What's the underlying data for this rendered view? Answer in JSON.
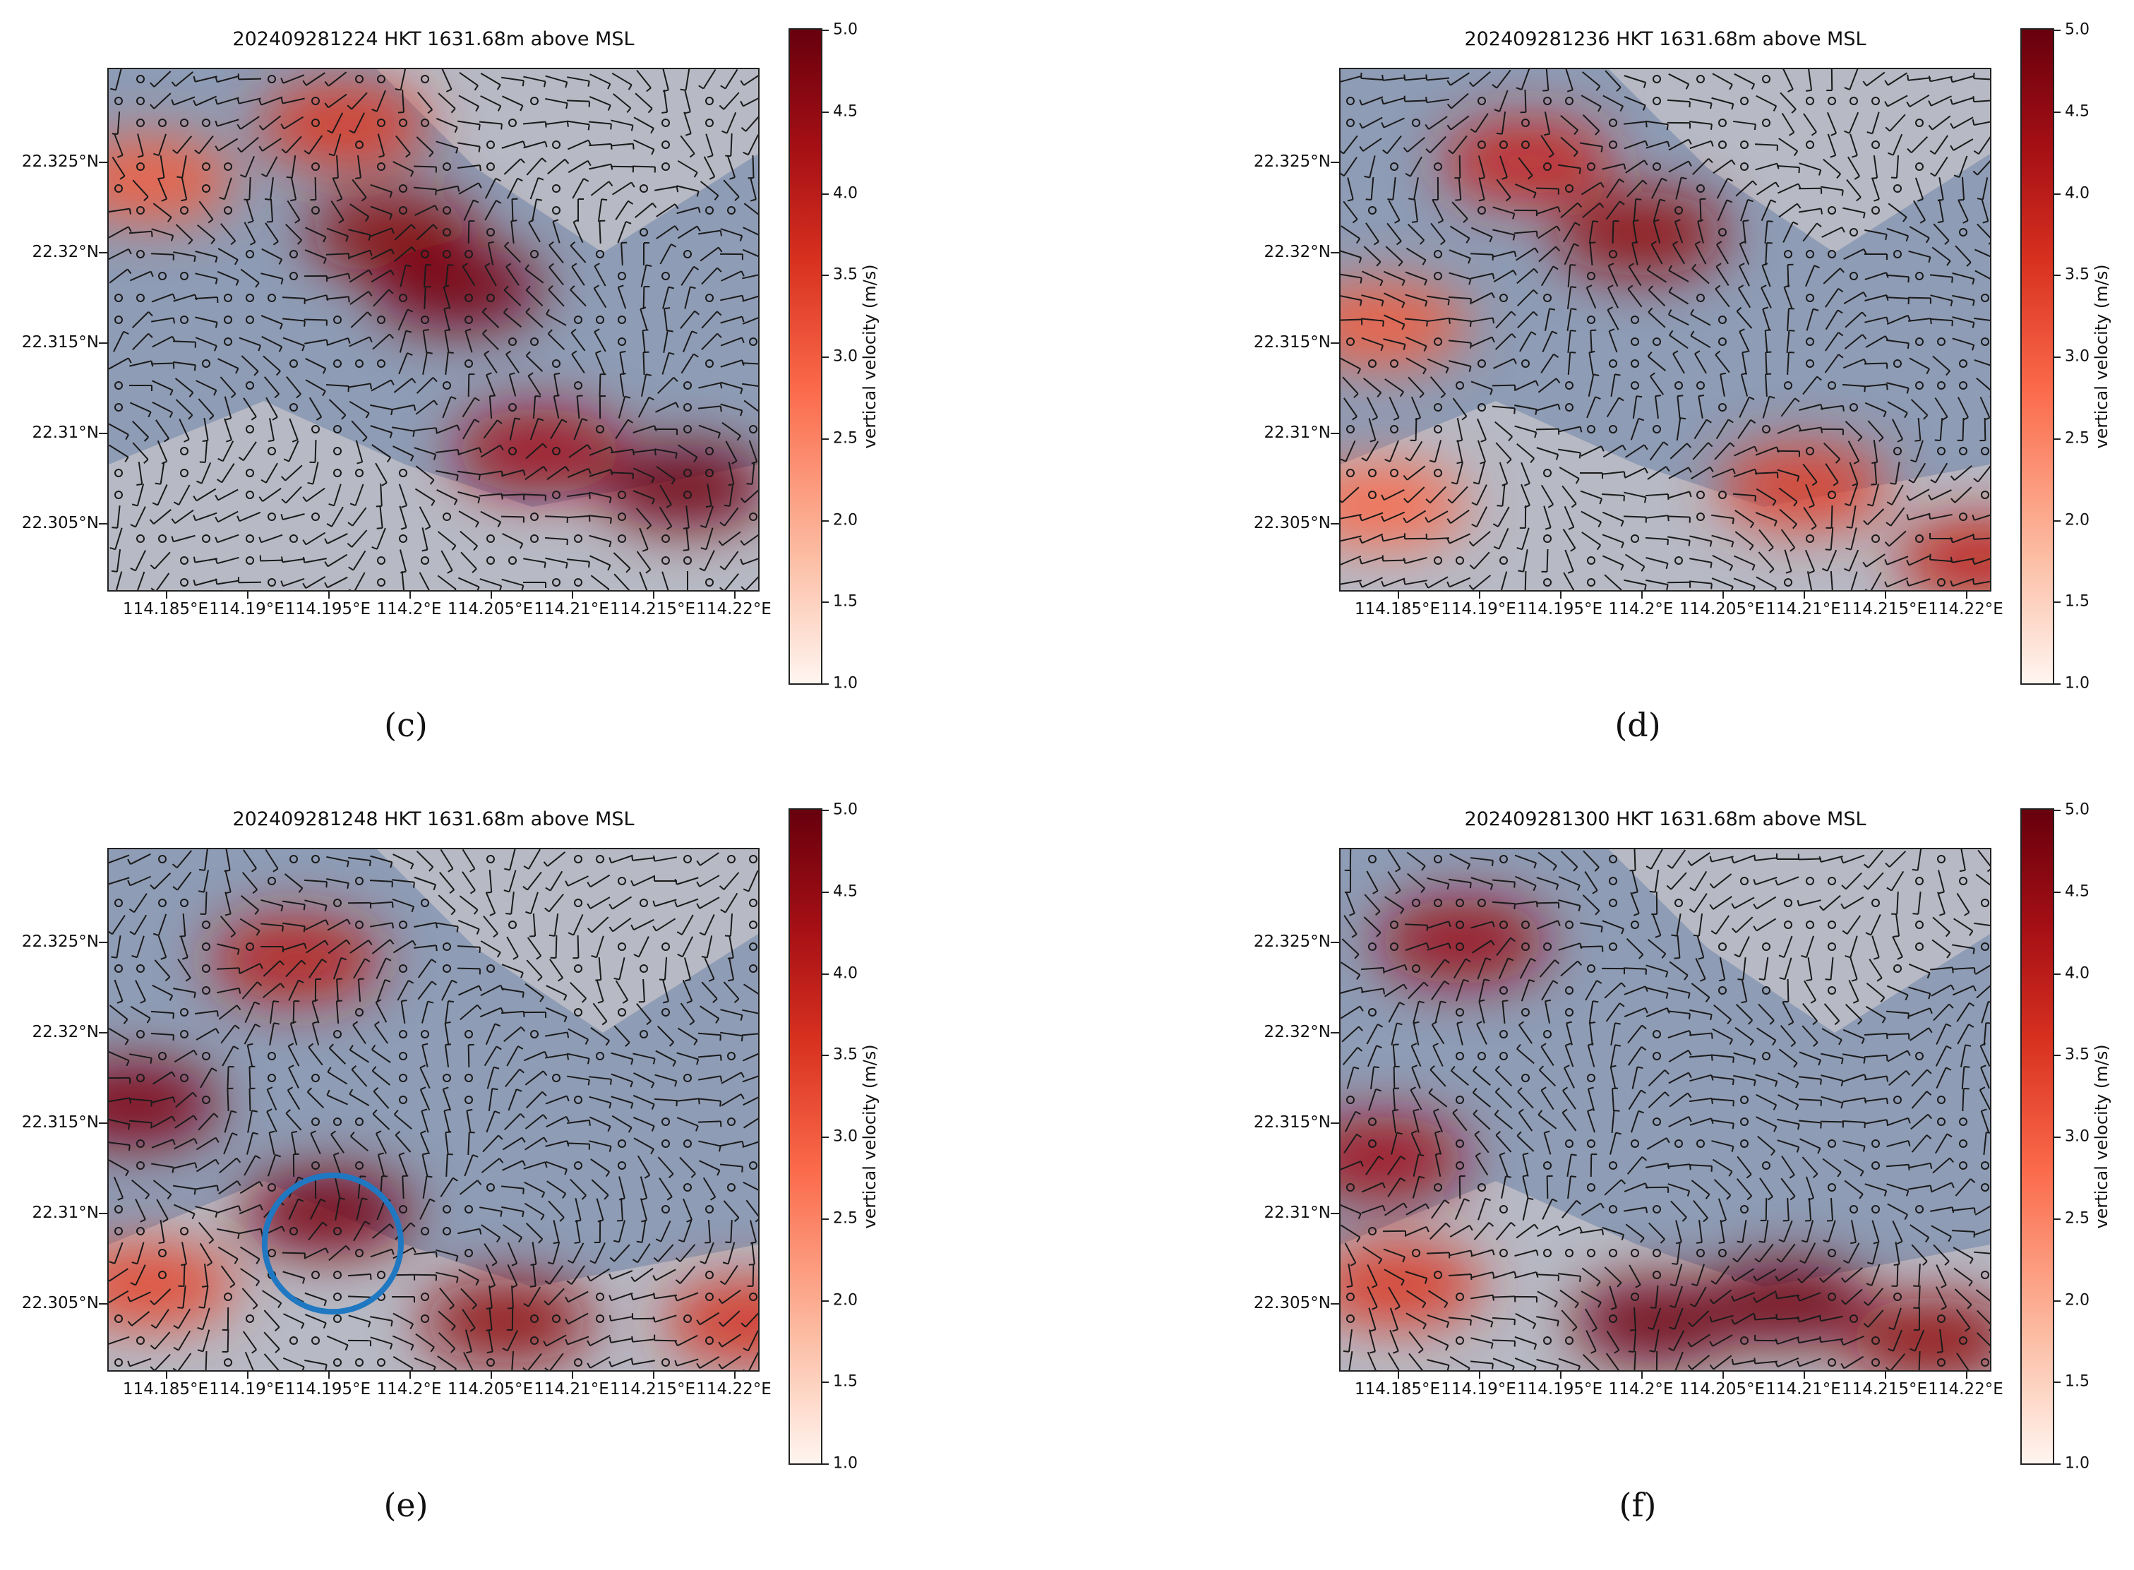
{
  "chart_data": [
    {
      "type": "heatmap",
      "panel": "c",
      "title": "202409281224 HKT 1631.68m above MSL",
      "x_ticks": [
        "114.185°E",
        "114.19°E",
        "114.195°E",
        "114.2°E",
        "114.205°E",
        "114.21°E",
        "114.215°E",
        "114.22°E"
      ],
      "y_ticks": [
        "22.325°N",
        "22.32°N",
        "22.315°N",
        "22.31°N",
        "22.305°N"
      ],
      "xlim": [
        114.1815,
        114.2215
      ],
      "ylim": [
        22.3013,
        22.3301
      ],
      "colorbar": {
        "label": "vertical velocity (m/s)",
        "range": [
          1.0,
          5.0
        ],
        "ticks": [
          "1.0",
          "1.5",
          "2.0",
          "2.5",
          "3.0",
          "3.5",
          "4.0",
          "4.5",
          "5.0"
        ]
      },
      "hotspots": [
        {
          "lon": 114.199,
          "lat": 22.321,
          "value": 4.6
        },
        {
          "lon": 114.203,
          "lat": 22.318,
          "value": 4.8
        },
        {
          "lon": 114.196,
          "lat": 22.327,
          "value": 3.5
        },
        {
          "lon": 114.184,
          "lat": 22.324,
          "value": 3.0
        },
        {
          "lon": 114.217,
          "lat": 22.307,
          "value": 4.9
        },
        {
          "lon": 114.208,
          "lat": 22.309,
          "value": 4.3
        }
      ]
    },
    {
      "type": "heatmap",
      "panel": "d",
      "title": "202409281236 HKT 1631.68m above MSL",
      "x_ticks": [
        "114.185°E",
        "114.19°E",
        "114.195°E",
        "114.2°E",
        "114.205°E",
        "114.21°E",
        "114.215°E",
        "114.22°E"
      ],
      "y_ticks": [
        "22.325°N",
        "22.32°N",
        "22.315°N",
        "22.31°N",
        "22.305°N"
      ],
      "xlim": [
        114.1815,
        114.2215
      ],
      "ylim": [
        22.3013,
        22.3301
      ],
      "colorbar": {
        "label": "vertical velocity (m/s)",
        "range": [
          1.0,
          5.0
        ],
        "ticks": [
          "1.0",
          "1.5",
          "2.0",
          "2.5",
          "3.0",
          "3.5",
          "4.0",
          "4.5",
          "5.0"
        ]
      },
      "hotspots": [
        {
          "lon": 114.193,
          "lat": 22.325,
          "value": 3.8
        },
        {
          "lon": 114.2,
          "lat": 22.321,
          "value": 4.5
        },
        {
          "lon": 114.184,
          "lat": 22.316,
          "value": 3.0
        },
        {
          "lon": 114.184,
          "lat": 22.306,
          "value": 2.8
        },
        {
          "lon": 114.21,
          "lat": 22.307,
          "value": 3.4
        },
        {
          "lon": 114.221,
          "lat": 22.303,
          "value": 3.9
        }
      ]
    },
    {
      "type": "heatmap",
      "panel": "e",
      "title": "202409281248 HKT 1631.68m above MSL",
      "x_ticks": [
        "114.185°E",
        "114.19°E",
        "114.195°E",
        "114.2°E",
        "114.205°E",
        "114.21°E",
        "114.215°E",
        "114.22°E"
      ],
      "y_ticks": [
        "22.325°N",
        "22.32°N",
        "22.315°N",
        "22.31°N",
        "22.305°N"
      ],
      "xlim": [
        114.1815,
        114.2215
      ],
      "ylim": [
        22.3013,
        22.3301
      ],
      "colorbar": {
        "label": "vertical velocity (m/s)",
        "range": [
          1.0,
          5.0
        ],
        "ticks": [
          "1.0",
          "1.5",
          "2.0",
          "2.5",
          "3.0",
          "3.5",
          "4.0",
          "4.5",
          "5.0"
        ]
      },
      "hotspots": [
        {
          "lon": 114.183,
          "lat": 22.316,
          "value": 4.7
        },
        {
          "lon": 114.193,
          "lat": 22.324,
          "value": 4.0
        },
        {
          "lon": 114.195,
          "lat": 22.31,
          "value": 4.8
        },
        {
          "lon": 114.206,
          "lat": 22.304,
          "value": 4.5
        },
        {
          "lon": 114.184,
          "lat": 22.306,
          "value": 3.3
        },
        {
          "lon": 114.221,
          "lat": 22.304,
          "value": 3.6
        }
      ],
      "annotation_circle": {
        "lon": 114.1953,
        "lat": 22.3083,
        "radius_deg": 0.0042
      }
    },
    {
      "type": "heatmap",
      "panel": "f",
      "title": "202409281300 HKT 1631.68m above MSL",
      "x_ticks": [
        "114.185°E",
        "114.19°E",
        "114.195°E",
        "114.2°E",
        "114.205°E",
        "114.21°E",
        "114.215°E",
        "114.22°E"
      ],
      "y_ticks": [
        "22.325°N",
        "22.32°N",
        "22.315°N",
        "22.31°N",
        "22.305°N"
      ],
      "xlim": [
        114.1815,
        114.2215
      ],
      "ylim": [
        22.3013,
        22.3301
      ],
      "colorbar": {
        "label": "vertical velocity (m/s)",
        "range": [
          1.0,
          5.0
        ],
        "ticks": [
          "1.0",
          "1.5",
          "2.0",
          "2.5",
          "3.0",
          "3.5",
          "4.0",
          "4.5",
          "5.0"
        ]
      },
      "hotspots": [
        {
          "lon": 114.189,
          "lat": 22.325,
          "value": 4.4
        },
        {
          "lon": 114.184,
          "lat": 22.313,
          "value": 4.3
        },
        {
          "lon": 114.201,
          "lat": 22.304,
          "value": 4.9
        },
        {
          "lon": 114.209,
          "lat": 22.305,
          "value": 4.9
        },
        {
          "lon": 114.218,
          "lat": 22.303,
          "value": 4.5
        },
        {
          "lon": 114.185,
          "lat": 22.306,
          "value": 3.5
        }
      ]
    }
  ],
  "panel_labels": [
    "(c)",
    "(d)",
    "(e)",
    "(f)"
  ],
  "colorbar_label_text": "vertical velocity (m/s)"
}
